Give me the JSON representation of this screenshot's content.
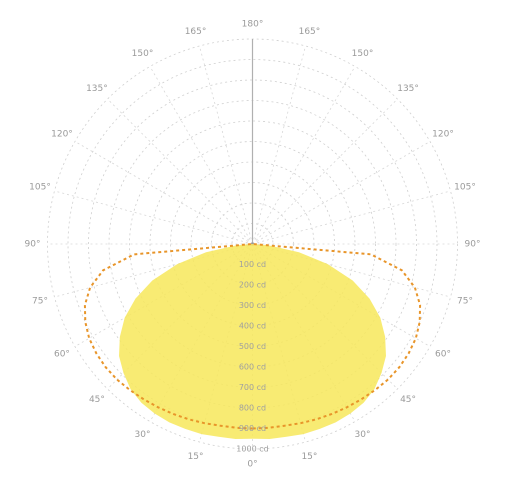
{
  "chart_data": {
    "type": "polar",
    "projection": "polar-luminous-intensity",
    "grid": true,
    "angle_step_deg": 15,
    "angle_tick_labels": [
      {
        "angle": 0,
        "label": "0°"
      },
      {
        "angle": 15,
        "label": "15°"
      },
      {
        "angle": 30,
        "label": "30°"
      },
      {
        "angle": 45,
        "label": "45°"
      },
      {
        "angle": 60,
        "label": "60°"
      },
      {
        "angle": 75,
        "label": "75°"
      },
      {
        "angle": 90,
        "label": "90°"
      },
      {
        "angle": 105,
        "label": "105°"
      },
      {
        "angle": 120,
        "label": "120°"
      },
      {
        "angle": 135,
        "label": "135°"
      },
      {
        "angle": 150,
        "label": "150°"
      },
      {
        "angle": 165,
        "label": "165°"
      },
      {
        "angle": 180,
        "label": "180°"
      },
      {
        "angle": 195,
        "label": "165°"
      },
      {
        "angle": 210,
        "label": "150°"
      },
      {
        "angle": 225,
        "label": "135°"
      },
      {
        "angle": 240,
        "label": "120°"
      },
      {
        "angle": 255,
        "label": "105°"
      },
      {
        "angle": 270,
        "label": "90°"
      },
      {
        "angle": 285,
        "label": "75°"
      },
      {
        "angle": 300,
        "label": "60°"
      },
      {
        "angle": 315,
        "label": "45°"
      },
      {
        "angle": 330,
        "label": "30°"
      },
      {
        "angle": 345,
        "label": "15°"
      }
    ],
    "radial_max": 1000,
    "radial_ticks": [
      100,
      200,
      300,
      400,
      500,
      600,
      700,
      800,
      900,
      1000
    ],
    "radial_tick_labels": [
      "100 cd",
      "200 cd",
      "300 cd",
      "400 cd",
      "500 cd",
      "600 cd",
      "700 cd",
      "800 cd",
      "900 cd",
      "1000 cd"
    ],
    "series": [
      {
        "style": "filled",
        "color": "#f7e85a",
        "angles": [
          0,
          5,
          10,
          15,
          20,
          25,
          30,
          35,
          40,
          45,
          50,
          55,
          60,
          65,
          70,
          75,
          80,
          85,
          90
        ],
        "values": [
          950,
          955,
          955,
          960,
          960,
          960,
          955,
          945,
          925,
          890,
          850,
          790,
          720,
          630,
          520,
          380,
          230,
          80,
          0
        ]
      },
      {
        "style": "dashed",
        "color": "#e8952a",
        "angles": [
          0,
          5,
          10,
          15,
          20,
          25,
          30,
          35,
          40,
          45,
          50,
          55,
          60,
          65,
          70,
          75,
          80,
          85,
          90
        ],
        "values": [
          900,
          900,
          900,
          905,
          910,
          915,
          920,
          925,
          930,
          935,
          935,
          930,
          920,
          900,
          870,
          820,
          740,
          580,
          0
        ]
      }
    ]
  }
}
